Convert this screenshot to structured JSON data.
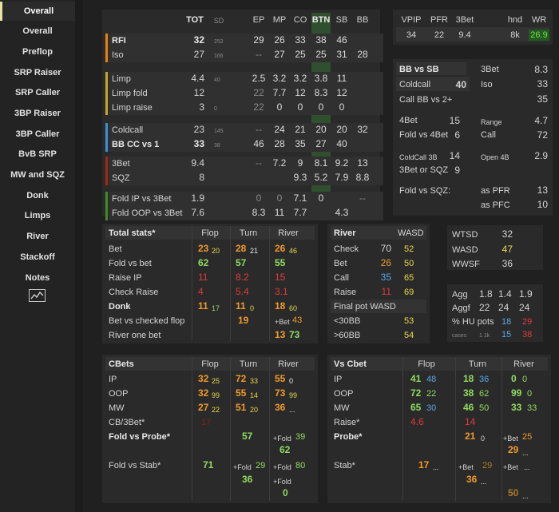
{
  "sidebar": {
    "items": [
      "Overall",
      "Overall",
      "Preflop",
      "SRP Raiser",
      "SRP Caller",
      "3BP Raiser",
      "3BP Caller",
      "BvB SRP",
      "MW and SQZ",
      "Donk",
      "Limps",
      "River",
      "Stackoff",
      "Notes"
    ],
    "chart_icon": "line-chart-icon"
  },
  "preflop": {
    "headers": [
      "TOT",
      "SD",
      "EP",
      "MP",
      "CO",
      "BTN",
      "SB",
      "BB"
    ],
    "group_colors": [
      "#e9820c",
      "#c4a72a",
      "#3e8fd4",
      "#a02a1a",
      "#3f8a2a"
    ],
    "rows": [
      {
        "label": "RFI",
        "tot": "32",
        "sd": "252",
        "ep": "29",
        "mp": "26",
        "co": "33",
        "btn": "38",
        "sb": "46",
        "bb": ""
      },
      {
        "label": "Iso",
        "tot": "27",
        "sd": "166",
        "ep": "--",
        "mp": "27",
        "co": "25",
        "btn": "25",
        "sb": "31",
        "bb": "28"
      },
      {
        "label": "Limp",
        "tot": "4.4",
        "sd": "40",
        "ep": "2.5",
        "mp": "3.2",
        "co": "3.2",
        "btn": "3.8",
        "sb": "11",
        "bb": ""
      },
      {
        "label": "Limp fold",
        "tot": "12",
        "sd": "",
        "ep": "22",
        "mp": "7.7",
        "co": "12",
        "btn": "8.3",
        "sb": "12",
        "bb": ""
      },
      {
        "label": "Limp raise",
        "tot": "3",
        "sd": "0",
        "ep": "22",
        "mp": "0",
        "co": "0",
        "btn": "0",
        "sb": "0",
        "bb": ""
      },
      {
        "label": "Coldcall",
        "tot": "23",
        "sd": "145",
        "ep": "--",
        "mp": "24",
        "co": "21",
        "btn": "20",
        "sb": "20",
        "bb": "32"
      },
      {
        "label": "BB CC vs 1",
        "tot": "33",
        "sd": "38",
        "ep": "46",
        "mp": "28",
        "co": "35",
        "btn": "27",
        "sb": "40",
        "bb": ""
      },
      {
        "label": "3Bet",
        "tot": "9.4",
        "sd": "",
        "ep": "--",
        "mp": "7.2",
        "co": "9",
        "btn": "8.1",
        "sb": "9.2",
        "bb": "13"
      },
      {
        "label": "SQZ",
        "tot": "8",
        "sd": "",
        "ep": "",
        "mp": "",
        "co": "9.3",
        "btn": "5.2",
        "sb": "7.9",
        "bb": "8.8"
      },
      {
        "label": "Fold IP vs 3Bet",
        "tot": "1.9",
        "sd": "",
        "ep": "0",
        "mp": "0",
        "co": "7.1",
        "btn": "0",
        "sb": "",
        "bb": "--"
      },
      {
        "label": "Fold OOP vs 3Bet",
        "tot": "7.6",
        "sd": "",
        "ep": "8.3",
        "mp": "11",
        "co": "7.7",
        "btn": "",
        "sb": "4.3",
        "bb": ""
      }
    ]
  },
  "summary": {
    "headers": [
      "VPIP",
      "PFR",
      "3Bet",
      "hnd",
      "WR"
    ],
    "values": [
      "34",
      "22",
      "9.4",
      "8k",
      "26.9"
    ]
  },
  "bbvssb": {
    "title": "BB vs SB",
    "coldcall_label": "Coldcall",
    "coldcall": "40",
    "threebet_label": "3Bet",
    "threebet": "8.3",
    "iso_label": "Iso",
    "iso": "33",
    "callbb_label": "Call BB vs 2+",
    "callbb": "35",
    "fourbet_label": "4Bet",
    "fourbet": "15",
    "range_label": "Range",
    "range": "4.7",
    "fold4bet_label": "Fold vs 4Bet",
    "fold4bet": "6",
    "call_label": "Call",
    "call": "72",
    "coldcall3b_label": "ColdCall 3B",
    "coldcall3b": "14",
    "open4b_label": "Open 4B",
    "open4b": "2.9",
    "threebetsqz_label": "3Bet or SQZ",
    "threebetsqz": "9",
    "foldsqz_label": "Fold vs SQZ:",
    "aspfr_label": "as PFR",
    "aspfr": "13",
    "aspfc_label": "as PFC",
    "aspfc": "10"
  },
  "total": {
    "title": "Total stats*",
    "cols": [
      "Flop",
      "Turn",
      "River"
    ],
    "bet_label": "Bet",
    "bet": [
      "23",
      "20",
      "28",
      "21",
      "26",
      "46"
    ],
    "foldbet_label": "Fold vs bet",
    "foldbet": [
      "62",
      "57",
      "55"
    ],
    "raiseip_label": "Raise IP",
    "raiseip": [
      "11",
      "8.2",
      "15"
    ],
    "checkraise_label": "Check Raise",
    "checkraise": [
      "4",
      "5.4",
      "3.1"
    ],
    "donk_label": "Donk",
    "donk": [
      "11",
      "17",
      "11",
      "0",
      "18",
      "60"
    ],
    "bvcf_label": "Bet vs checked flop",
    "bvcf": [
      "19",
      "+Bet",
      "43"
    ],
    "rob_label": "River one bet",
    "rob": [
      "13",
      "73"
    ]
  },
  "river": {
    "title": "River",
    "wasd": "WASD",
    "check_label": "Check",
    "check": [
      "70",
      "52"
    ],
    "bet_label": "Bet",
    "bet": [
      "26",
      "50"
    ],
    "call_label": "Call",
    "call": [
      "35",
      "65"
    ],
    "raise_label": "Raise",
    "raise": [
      "11",
      "69"
    ],
    "final_label": "Final pot WASD",
    "lt30_label": "<30BB",
    "lt30": "53",
    "gt60_label": ">60BB",
    "gt60": "54"
  },
  "wtsd": {
    "wtsd_label": "WTSD",
    "wtsd": "32",
    "wasd_label": "WASD",
    "wasd": "47",
    "wwsf_label": "WWSF",
    "wwsf": "36",
    "agg_label": "Agg",
    "agg": [
      "1.8",
      "1.4",
      "1.9"
    ],
    "aggf_label": "Aggf",
    "aggf": [
      "22",
      "24",
      "24"
    ],
    "hupots_label": "% HU pots",
    "hupots": [
      "18",
      "29"
    ],
    "cases_label": "cases",
    "cases": [
      "1.1k",
      "15",
      "38"
    ]
  },
  "cbets": {
    "title": "CBets",
    "cols": [
      "Flop",
      "Turn",
      "River"
    ],
    "ip_label": "IP",
    "ip": [
      "32",
      "25",
      "72",
      "33",
      "55",
      "0"
    ],
    "oop_label": "OOP",
    "oop": [
      "32",
      "99",
      "55",
      "14",
      "73",
      "99"
    ],
    "mw_label": "MW",
    "mw": [
      "27",
      "22",
      "51",
      "20",
      "36",
      "..."
    ],
    "cb3_label": "CB/3Bet*",
    "cb3": "17",
    "fvp_label": "Fold vs Probe*",
    "fvp": [
      "57",
      "+Fold",
      "39",
      "62"
    ],
    "fvs_label": "Fold vs Stab*",
    "fvs": [
      "71",
      "+Fold",
      "29",
      "+Fold",
      "80",
      "36",
      "+Fold",
      "0"
    ]
  },
  "vscbet": {
    "title": "Vs Cbet",
    "cols": [
      "Flop",
      "Turn",
      "River"
    ],
    "ip_label": "IP",
    "ip": [
      "41",
      "48",
      "18",
      "36",
      "0",
      "0"
    ],
    "oop_label": "OOP",
    "oop": [
      "72",
      "22",
      "38",
      "62",
      "99",
      "0"
    ],
    "mw_label": "MW",
    "mw": [
      "65",
      "30",
      "46",
      "50",
      "33",
      "33"
    ],
    "raise_label": "Raise*",
    "raise": [
      "4.6",
      "14"
    ],
    "probe_label": "Probe*",
    "probe": [
      "21",
      "0",
      "+Bet",
      "25",
      "29",
      "..."
    ],
    "stab_label": "Stab*",
    "stab": [
      "17",
      "...",
      "+Bet",
      "29",
      "+Bet",
      "...",
      "36",
      "...",
      "50",
      "..."
    ]
  }
}
